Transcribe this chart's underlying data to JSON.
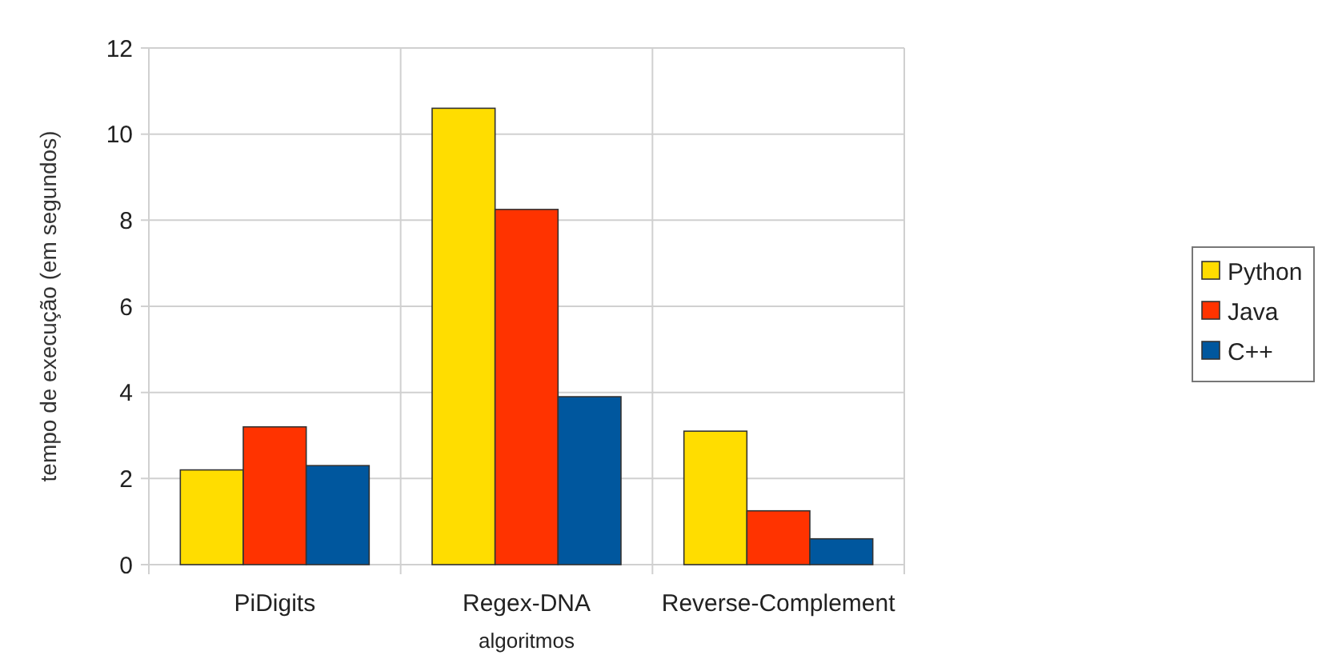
{
  "chart_data": {
    "type": "bar",
    "xlabel": "algoritmos",
    "ylabel": "tempo de execução  (em segundos)",
    "categories": [
      "PiDigits",
      "Regex-DNA",
      "Reverse-Complement"
    ],
    "series": [
      {
        "name": "Python",
        "color": "#ffdd00",
        "values": [
          2.2,
          10.6,
          3.1
        ]
      },
      {
        "name": "Java",
        "color": "#ff3300",
        "values": [
          3.2,
          8.25,
          1.25
        ]
      },
      {
        "name": "C++",
        "color": "#00579e",
        "values": [
          2.3,
          3.9,
          0.6
        ]
      }
    ],
    "ylim": [
      0,
      12
    ],
    "yticks": [
      0,
      2,
      4,
      6,
      8,
      10,
      12
    ],
    "grid": true,
    "legend": "right"
  }
}
